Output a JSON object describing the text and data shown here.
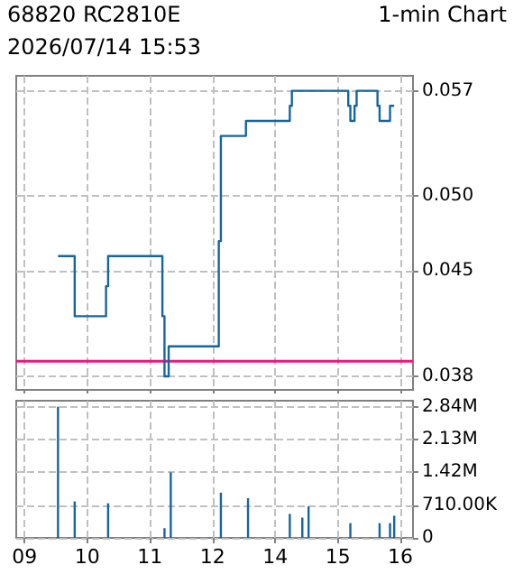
{
  "chart_data": [
    {
      "type": "step",
      "title": "68820 RC2810E",
      "subtitle": "2026/07/14 15:53",
      "annotations": [
        "1-min Chart"
      ],
      "categories": [
        null,
        null,
        null,
        null,
        "09",
        null,
        null,
        null,
        null,
        null,
        null,
        null,
        null,
        null,
        null,
        null,
        null,
        null,
        null,
        null,
        null,
        null,
        null,
        null,
        null,
        null,
        null,
        null,
        null,
        null,
        null,
        null,
        null,
        null,
        "10",
        null,
        null,
        null,
        null,
        null,
        null,
        null,
        null,
        null,
        null,
        null,
        null,
        null,
        null,
        null,
        null,
        null,
        null,
        null,
        null,
        null,
        null,
        null,
        null,
        null,
        null,
        null,
        null,
        null,
        "11",
        null,
        null,
        null,
        null,
        null,
        null,
        null,
        null,
        null,
        null,
        null,
        null,
        null,
        null,
        null,
        null,
        null,
        null,
        null,
        null,
        null,
        null,
        null,
        null,
        null,
        null,
        null,
        null,
        null,
        "12",
        null,
        null,
        null,
        null,
        null,
        null,
        null,
        null,
        null,
        null,
        null,
        null,
        null,
        null,
        null,
        null,
        null,
        null,
        null,
        null,
        null,
        null,
        null,
        null,
        null,
        null,
        null,
        null,
        null,
        "14",
        null,
        null,
        null,
        null,
        null,
        null,
        null,
        null,
        null,
        null,
        null,
        null,
        null,
        null,
        null,
        null,
        null,
        null,
        null,
        null,
        null,
        null,
        null,
        null,
        null,
        null,
        null,
        null,
        null,
        "15",
        null,
        null,
        null,
        null,
        null,
        null,
        null,
        null,
        null,
        null,
        null,
        null,
        null,
        null,
        null,
        null,
        null,
        null,
        null,
        null,
        null,
        null,
        null,
        null,
        null,
        null,
        null,
        null,
        null,
        "16",
        null,
        null,
        null,
        null,
        null,
        null
      ],
      "values": [
        null,
        null,
        null,
        null,
        null,
        null,
        null,
        null,
        null,
        null,
        null,
        null,
        null,
        null,
        null,
        null,
        null,
        null,
        null,
        null,
        0.046,
        0.046,
        0.046,
        0.046,
        0.046,
        0.046,
        0.046,
        0.046,
        0.042,
        0.042,
        0.042,
        0.042,
        0.042,
        0.042,
        0.042,
        0.042,
        0.042,
        0.042,
        0.042,
        0.042,
        0.042,
        0.042,
        0.042,
        0.044,
        0.046,
        0.046,
        0.046,
        0.046,
        0.046,
        0.046,
        0.046,
        0.046,
        0.046,
        0.046,
        0.046,
        0.046,
        0.046,
        0.046,
        0.046,
        0.046,
        0.046,
        0.046,
        0.046,
        0.046,
        0.046,
        0.046,
        0.046,
        0.046,
        0.046,
        0.046,
        0.042,
        0.038,
        0.038,
        0.04,
        0.04,
        0.04,
        0.04,
        0.04,
        0.04,
        0.04,
        0.04,
        0.04,
        0.04,
        0.04,
        0.04,
        0.04,
        0.04,
        0.04,
        0.04,
        0.04,
        0.04,
        0.04,
        0.04,
        0.04,
        0.04,
        0.04,
        0.04,
        0.047,
        0.054,
        0.054,
        0.054,
        0.054,
        0.054,
        0.054,
        0.054,
        0.054,
        0.054,
        0.054,
        0.054,
        0.054,
        0.055,
        0.055,
        0.055,
        0.055,
        0.055,
        0.055,
        0.055,
        0.055,
        0.055,
        0.055,
        0.055,
        0.055,
        0.055,
        0.055,
        0.055,
        0.055,
        0.055,
        0.055,
        0.055,
        0.055,
        0.055,
        0.056,
        0.057,
        0.057,
        0.057,
        0.057,
        0.057,
        0.057,
        0.057,
        0.057,
        0.057,
        0.057,
        0.057,
        0.057,
        0.057,
        0.057,
        0.057,
        0.057,
        0.057,
        0.057,
        0.057,
        0.057,
        0.057,
        0.057,
        0.057,
        0.057,
        0.057,
        0.057,
        0.057,
        0.056,
        0.055,
        0.055,
        0.056,
        0.057,
        0.057,
        0.057,
        0.057,
        0.057,
        0.057,
        0.057,
        0.057,
        0.057,
        0.057,
        0.056,
        0.055,
        0.055,
        0.055,
        0.055,
        0.055,
        0.056,
        0.056,
        null,
        null,
        null,
        null,
        null,
        null,
        null,
        null,
        null,
        null
      ],
      "color": "#1565a0",
      "ylim": [
        0.0371,
        0.058
      ],
      "yticks": [
        0.038,
        0.045,
        {
          "value": 0.05,
          "label": "0.050"
        },
        0.057
      ],
      "ref_lines": [
        {
          "axis": "y",
          "value": 0.039,
          "color": "#f0147f"
        }
      ],
      "grid": true,
      "tick_labels": "y"
    },
    {
      "type": "bar",
      "categories": [
        null,
        null,
        null,
        null,
        "09",
        null,
        null,
        null,
        null,
        null,
        null,
        null,
        null,
        null,
        null,
        null,
        null,
        null,
        null,
        null,
        null,
        null,
        null,
        null,
        null,
        null,
        null,
        null,
        null,
        null,
        null,
        null,
        null,
        null,
        "10",
        null,
        null,
        null,
        null,
        null,
        null,
        null,
        null,
        null,
        null,
        null,
        null,
        null,
        null,
        null,
        null,
        null,
        null,
        null,
        null,
        null,
        null,
        null,
        null,
        null,
        null,
        null,
        null,
        null,
        "11",
        null,
        null,
        null,
        null,
        null,
        null,
        null,
        null,
        null,
        null,
        null,
        null,
        null,
        null,
        null,
        null,
        null,
        null,
        null,
        null,
        null,
        null,
        null,
        null,
        null,
        null,
        null,
        null,
        null,
        "12",
        null,
        null,
        null,
        null,
        null,
        null,
        null,
        null,
        null,
        null,
        null,
        null,
        null,
        null,
        null,
        null,
        null,
        null,
        null,
        null,
        null,
        null,
        null,
        null,
        null,
        null,
        null,
        null,
        null,
        "14",
        null,
        null,
        null,
        null,
        null,
        null,
        null,
        null,
        null,
        null,
        null,
        null,
        null,
        null,
        null,
        null,
        null,
        null,
        null,
        null,
        null,
        null,
        null,
        null,
        null,
        null,
        null,
        null,
        null,
        "15",
        null,
        null,
        null,
        null,
        null,
        null,
        null,
        null,
        null,
        null,
        null,
        null,
        null,
        null,
        null,
        null,
        null,
        null,
        null,
        null,
        null,
        null,
        null,
        null,
        null,
        null,
        null,
        null,
        null,
        "16",
        null,
        null,
        null,
        null,
        null,
        null
      ],
      "values": [
        null,
        null,
        null,
        null,
        null,
        null,
        null,
        null,
        null,
        null,
        null,
        null,
        null,
        null,
        null,
        null,
        null,
        null,
        null,
        null,
        2840000,
        null,
        null,
        null,
        null,
        null,
        null,
        null,
        790000,
        null,
        null,
        null,
        null,
        null,
        null,
        null,
        null,
        null,
        null,
        null,
        null,
        null,
        null,
        null,
        750000,
        null,
        null,
        null,
        null,
        null,
        null,
        null,
        null,
        null,
        null,
        null,
        null,
        null,
        null,
        null,
        null,
        null,
        null,
        null,
        null,
        null,
        null,
        null,
        null,
        null,
        null,
        210000,
        null,
        null,
        1420000,
        null,
        null,
        null,
        null,
        null,
        null,
        null,
        null,
        null,
        null,
        null,
        null,
        null,
        null,
        null,
        null,
        null,
        null,
        null,
        null,
        null,
        null,
        null,
        980000,
        null,
        null,
        null,
        null,
        null,
        null,
        null,
        null,
        null,
        null,
        null,
        null,
        860000,
        null,
        null,
        null,
        null,
        null,
        null,
        null,
        null,
        null,
        null,
        null,
        null,
        null,
        null,
        null,
        null,
        null,
        null,
        null,
        520000,
        null,
        null,
        null,
        null,
        null,
        440000,
        null,
        null,
        680000,
        null,
        null,
        null,
        null,
        null,
        null,
        null,
        null,
        null,
        null,
        null,
        null,
        null,
        null,
        null,
        null,
        null,
        null,
        null,
        320000,
        null,
        null,
        null,
        null,
        null,
        null,
        null,
        null,
        null,
        null,
        null,
        null,
        null,
        320000,
        null,
        null,
        null,
        null,
        320000,
        null,
        480000,
        null,
        null,
        null,
        null,
        null,
        null,
        null,
        null,
        null
      ],
      "color": "#1565a0",
      "ylim": [
        0,
        2970000
      ],
      "yticks": [
        0,
        {
          "value": 710000,
          "label": "710.00K"
        },
        {
          "value": 1420000,
          "label": "1.42M"
        },
        {
          "value": 2130000,
          "label": "2.13M"
        },
        {
          "value": 2840000,
          "label": "2.84M"
        }
      ],
      "grid": true
    }
  ]
}
